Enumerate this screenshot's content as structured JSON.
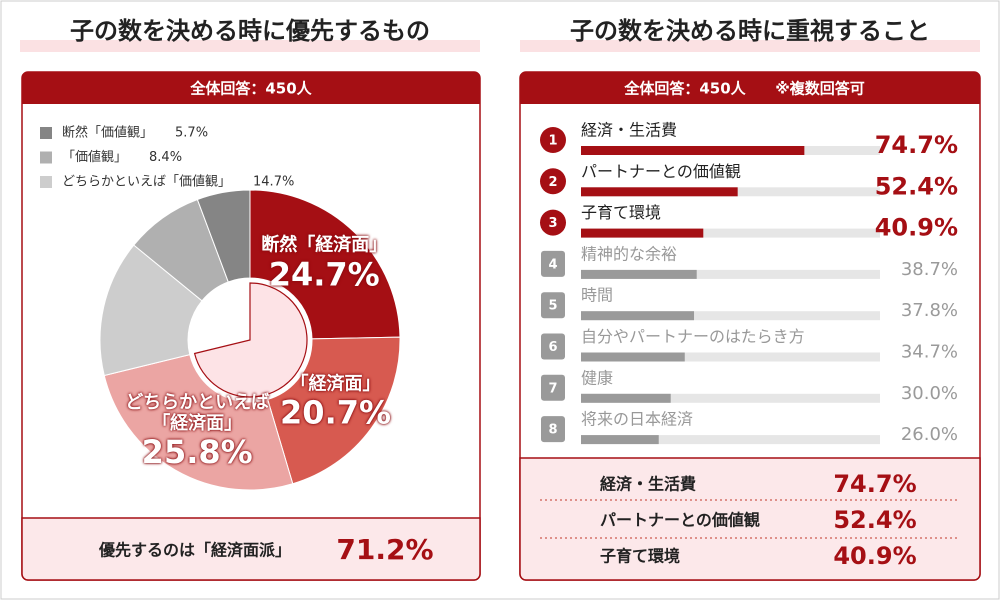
{
  "chart_data": [
    {
      "type": "pie",
      "title": "子の数を決める時に優先するもの",
      "subtitle": "全体回答：450人",
      "categories": [
        "断然「経済面」",
        "「経済面」",
        "どちらかといえば「経済面」",
        "どちらかといえば「価値観」",
        "「価値観」",
        "断然「価値観」"
      ],
      "values": [
        24.7,
        20.7,
        25.8,
        14.7,
        8.4,
        5.7
      ],
      "value_labels": [
        "24.7%",
        "20.7%",
        "25.8%",
        "14.7%",
        "8.4%",
        "5.7%"
      ],
      "colors": [
        "#a50f14",
        "#d75a50",
        "#eba5a3",
        "#cdcdcd",
        "#b0b0b0",
        "#858585"
      ],
      "summary": {
        "label": "優先するのは「経済面派」",
        "value": 71.2,
        "value_label": "71.2%"
      }
    },
    {
      "type": "bar",
      "title": "子の数を決める時に重視すること",
      "subtitle": "全体回答：450人",
      "note": "※複数回答可",
      "ranks": [
        1,
        2,
        3,
        4,
        5,
        6,
        7,
        8
      ],
      "categories": [
        "経済・生活費",
        "パートナーとの価値観",
        "子育て環境",
        "精神的な余裕",
        "時間",
        "自分やパートナーのはたらき方",
        "健康",
        "将来の日本経済"
      ],
      "values": [
        74.7,
        52.4,
        40.9,
        38.7,
        37.8,
        34.7,
        30.0,
        26.0
      ],
      "value_labels": [
        "74.7%",
        "52.4%",
        "40.9%",
        "38.7%",
        "37.8%",
        "34.7%",
        "30.0%",
        "26.0%"
      ],
      "colors": [
        "#a50f14",
        "#a50f14",
        "#a50f14",
        "#9a9a9a",
        "#9a9a9a",
        "#9a9a9a",
        "#9a9a9a",
        "#9a9a9a"
      ],
      "xlim": [
        0,
        100
      ]
    }
  ]
}
